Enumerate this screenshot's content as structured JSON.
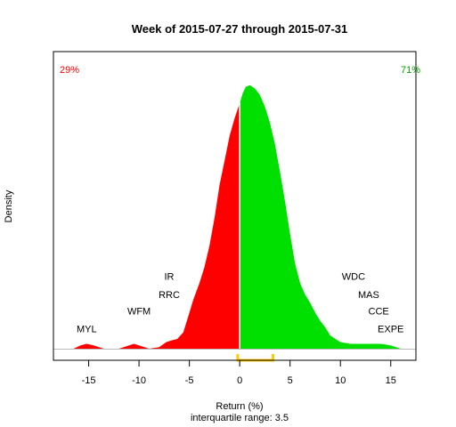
{
  "chart_data": {
    "type": "area",
    "title": "Week of 2015-07-27 through 2015-07-31",
    "xlabel": "Return (%)",
    "ylabel": "Density",
    "subtitle": "interquartile range: 3.5",
    "xlim": [
      -18.5,
      17.5
    ],
    "ylim": [
      0,
      0.175
    ],
    "x_ticks": [
      -15,
      -10,
      -5,
      0,
      5,
      10,
      15
    ],
    "x_tick_labels": [
      "-15",
      "-10",
      "-5",
      "0",
      "5",
      "10",
      "15"
    ],
    "negative_share_label": "29%",
    "positive_share_label": "71%",
    "colors": {
      "negative": "#ff0000",
      "positive": "#00e000",
      "negative_text": "#ff0000",
      "positive_text": "#00a000",
      "iqr": "#ffcc00",
      "baseline": "#bbbbbb",
      "divider": "#ffffff"
    },
    "iqr_range": [
      -0.2,
      3.3
    ],
    "density": {
      "x": [
        -16.5,
        -15.8,
        -15.2,
        -14.5,
        -13.5,
        -12,
        -11,
        -10.5,
        -10,
        -9,
        -8,
        -7.3,
        -6.8,
        -6.2,
        -5.6,
        -5.1,
        -4.6,
        -4,
        -3.5,
        -3,
        -2.5,
        -2,
        -1.5,
        -1,
        -0.5,
        0,
        0.3,
        0.6,
        1,
        1.5,
        2,
        2.5,
        3,
        3.5,
        4,
        4.5,
        5,
        5.5,
        6,
        6.5,
        7,
        7.5,
        8,
        8.5,
        9,
        10,
        11,
        12,
        13,
        14,
        15,
        16
      ],
      "y": [
        0,
        0.002,
        0.003,
        0.002,
        0,
        0,
        0.002,
        0.003,
        0.002,
        0,
        0.001,
        0.004,
        0.005,
        0.006,
        0.01,
        0.02,
        0.03,
        0.04,
        0.05,
        0.063,
        0.08,
        0.1,
        0.115,
        0.13,
        0.141,
        0.15,
        0.156,
        0.16,
        0.161,
        0.159,
        0.155,
        0.148,
        0.138,
        0.125,
        0.108,
        0.09,
        0.07,
        0.052,
        0.04,
        0.033,
        0.028,
        0.022,
        0.017,
        0.013,
        0.008,
        0.004,
        0.003,
        0.003,
        0.003,
        0.003,
        0.002,
        0
      ],
      "split_x": 0
    },
    "annotations": [
      {
        "label": "MYL",
        "x": -15.2,
        "y": 0.01
      },
      {
        "label": "WFM",
        "x": -10,
        "y": 0.021
      },
      {
        "label": "RRC",
        "x": -7,
        "y": 0.031
      },
      {
        "label": "IR",
        "x": -7,
        "y": 0.042
      },
      {
        "label": "WDC",
        "x": 11.3,
        "y": 0.042
      },
      {
        "label": "MAS",
        "x": 12.8,
        "y": 0.031
      },
      {
        "label": "CCE",
        "x": 13.8,
        "y": 0.021
      },
      {
        "label": "EXPE",
        "x": 15,
        "y": 0.01
      }
    ]
  }
}
